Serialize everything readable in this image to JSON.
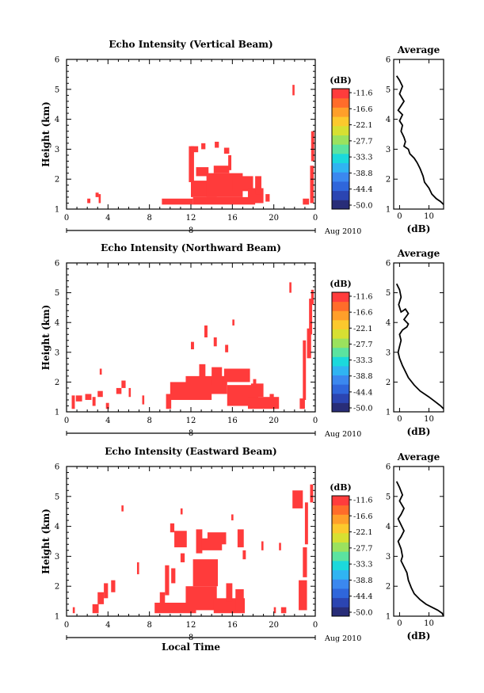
{
  "chart_data": [
    {
      "type": "heatmap",
      "title": "Echo Intensity (Vertical Beam)",
      "ylabel": "Height (km)",
      "xlim": [
        0,
        24
      ],
      "ylim": [
        1,
        6
      ],
      "x_ticks": [
        "0",
        "4",
        "8",
        "12",
        "16",
        "20",
        "0"
      ],
      "y_ticks": [
        "1",
        "2",
        "3",
        "4",
        "5",
        "6"
      ],
      "day_label": "8",
      "month_label": "Aug 2010",
      "echo_cells": [
        [
          2,
          1.2,
          0.3,
          0.15
        ],
        [
          2.8,
          1.4,
          0.3,
          0.15
        ],
        [
          3.1,
          1.2,
          0.2,
          0.3
        ],
        [
          9.2,
          1.15,
          3,
          0.2
        ],
        [
          12.2,
          1.15,
          6,
          0.25
        ],
        [
          12,
          1.4,
          2.5,
          0.55
        ],
        [
          11.8,
          1.9,
          0.5,
          1.2
        ],
        [
          12.5,
          2.1,
          1.2,
          0.3
        ],
        [
          13.5,
          1.4,
          3.5,
          0.8
        ],
        [
          14.2,
          2.2,
          1.5,
          0.25
        ],
        [
          16,
          1.6,
          2,
          0.5
        ],
        [
          17.5,
          1.2,
          1.5,
          0.5
        ],
        [
          18.2,
          1.5,
          0.6,
          0.6
        ],
        [
          12,
          2.9,
          0.7,
          0.2
        ],
        [
          13,
          3.0,
          0.4,
          0.2
        ],
        [
          14.3,
          3.05,
          0.4,
          0.2
        ],
        [
          15.2,
          2.85,
          0.5,
          0.2
        ],
        [
          15.6,
          2.3,
          0.3,
          0.5
        ],
        [
          19.2,
          1.25,
          0.4,
          0.25
        ],
        [
          21.8,
          4.8,
          0.2,
          0.35
        ],
        [
          22.8,
          1.15,
          0.6,
          0.2
        ],
        [
          23.5,
          1.2,
          0.35,
          1.25
        ],
        [
          23.6,
          2.6,
          0.3,
          1.0
        ]
      ],
      "colorbar": {
        "unit": "(dB)",
        "labels": [
          "-11.6",
          "-16.6",
          "-22.1",
          "-27.7",
          "-33.3",
          "-38.8",
          "-44.4",
          "-50.0"
        ]
      },
      "average_profile": {
        "title": "Average",
        "xlabel": "(dB)",
        "xlim": [
          -2,
          15
        ],
        "ylim": [
          1,
          6
        ],
        "x_ticks": [
          "0",
          "10"
        ],
        "y_ticks": [
          "1",
          "2",
          "3",
          "4",
          "5",
          "6"
        ],
        "points": [
          [
            -1,
            5.45
          ],
          [
            0,
            5.3
          ],
          [
            1,
            5.1
          ],
          [
            0,
            4.85
          ],
          [
            1.5,
            4.6
          ],
          [
            0.5,
            4.45
          ],
          [
            -0.5,
            4.3
          ],
          [
            1,
            4.15
          ],
          [
            0,
            3.95
          ],
          [
            1,
            3.8
          ],
          [
            0.5,
            3.6
          ],
          [
            1.5,
            3.4
          ],
          [
            2,
            3.25
          ],
          [
            1.5,
            3.1
          ],
          [
            3,
            3.0
          ],
          [
            3.5,
            2.85
          ],
          [
            5,
            2.7
          ],
          [
            6,
            2.55
          ],
          [
            7,
            2.35
          ],
          [
            8,
            2.1
          ],
          [
            8.5,
            1.9
          ],
          [
            10,
            1.7
          ],
          [
            11,
            1.5
          ],
          [
            12.5,
            1.35
          ],
          [
            14,
            1.25
          ],
          [
            15,
            1.15
          ]
        ]
      }
    },
    {
      "type": "heatmap",
      "title": "Echo Intensity (Northward Beam)",
      "ylabel": "Height (km)",
      "xlim": [
        0,
        24
      ],
      "ylim": [
        1,
        6
      ],
      "x_ticks": [
        "0",
        "4",
        "8",
        "12",
        "16",
        "20",
        "0"
      ],
      "y_ticks": [
        "1",
        "2",
        "3",
        "4",
        "5",
        "6"
      ],
      "day_label": "8",
      "month_label": "Aug 2010",
      "echo_cells": [
        [
          0.5,
          1.1,
          0.3,
          0.45
        ],
        [
          0.9,
          1.35,
          0.6,
          0.2
        ],
        [
          1.8,
          1.4,
          0.6,
          0.2
        ],
        [
          2.5,
          1.2,
          0.3,
          0.3
        ],
        [
          3,
          1.5,
          0.5,
          0.2
        ],
        [
          3.2,
          2.25,
          0.2,
          0.2
        ],
        [
          3.8,
          1.1,
          0.3,
          0.2
        ],
        [
          4.8,
          1.6,
          0.5,
          0.2
        ],
        [
          5.3,
          1.8,
          0.4,
          0.25
        ],
        [
          6,
          1.5,
          0.2,
          0.3
        ],
        [
          7.3,
          1.25,
          0.2,
          0.3
        ],
        [
          9.6,
          1.1,
          0.5,
          0.5
        ],
        [
          10,
          1.4,
          4,
          0.6
        ],
        [
          11.5,
          1.6,
          4,
          0.6
        ],
        [
          12.8,
          2.1,
          0.6,
          0.5
        ],
        [
          14,
          1.9,
          1,
          0.6
        ],
        [
          15.5,
          1.2,
          3,
          0.7
        ],
        [
          15.2,
          2.0,
          2.5,
          0.45
        ],
        [
          17.5,
          1.1,
          3,
          0.4
        ],
        [
          17.8,
          1.5,
          1.2,
          0.45
        ],
        [
          12,
          3.1,
          0.3,
          0.25
        ],
        [
          13.3,
          3.5,
          0.3,
          0.4
        ],
        [
          14.2,
          3.2,
          0.3,
          0.3
        ],
        [
          15.3,
          3.0,
          0.3,
          0.25
        ],
        [
          16,
          3.9,
          0.2,
          0.2
        ],
        [
          18,
          1.8,
          0.3,
          0.3
        ],
        [
          19.6,
          1.4,
          0.4,
          0.2
        ],
        [
          21.5,
          5.0,
          0.2,
          0.35
        ],
        [
          22.5,
          1.1,
          0.5,
          0.35
        ],
        [
          22.8,
          1.4,
          0.3,
          2.0
        ],
        [
          23.2,
          2.8,
          0.4,
          1.0
        ],
        [
          23.4,
          3.6,
          0.3,
          1.2
        ],
        [
          23.6,
          4.6,
          0.25,
          0.5
        ]
      ],
      "colorbar": {
        "unit": "(dB)",
        "labels": [
          "-11.6",
          "-16.6",
          "-22.1",
          "-27.7",
          "-33.3",
          "-38.8",
          "-44.4",
          "-50.0"
        ]
      },
      "average_profile": {
        "title": "Average",
        "xlabel": "(dB)",
        "xlim": [
          -2,
          15
        ],
        "ylim": [
          1,
          6
        ],
        "x_ticks": [
          "0",
          "10"
        ],
        "y_ticks": [
          "1",
          "2",
          "3",
          "4",
          "5",
          "6"
        ],
        "points": [
          [
            -1,
            5.3
          ],
          [
            0,
            5.1
          ],
          [
            0.5,
            4.85
          ],
          [
            -0.3,
            4.6
          ],
          [
            0.5,
            4.35
          ],
          [
            2,
            4.45
          ],
          [
            3,
            4.3
          ],
          [
            1.5,
            4.1
          ],
          [
            3,
            3.95
          ],
          [
            2.5,
            3.85
          ],
          [
            1,
            3.75
          ],
          [
            0,
            3.6
          ],
          [
            0.5,
            3.4
          ],
          [
            0,
            3.2
          ],
          [
            -0.5,
            3.0
          ],
          [
            0,
            2.8
          ],
          [
            1,
            2.55
          ],
          [
            2,
            2.35
          ],
          [
            3,
            2.15
          ],
          [
            5,
            1.9
          ],
          [
            7,
            1.7
          ],
          [
            10,
            1.5
          ],
          [
            12,
            1.35
          ],
          [
            14,
            1.2
          ],
          [
            15,
            1.1
          ]
        ]
      }
    },
    {
      "type": "heatmap",
      "title": "Echo Intensity (Eastward Beam)",
      "ylabel": "Height (km)",
      "xlabel": "Local Time",
      "xlim": [
        0,
        24
      ],
      "ylim": [
        1,
        6
      ],
      "x_ticks": [
        "0",
        "4",
        "8",
        "12",
        "16",
        "20",
        "0"
      ],
      "y_ticks": [
        "1",
        "2",
        "3",
        "4",
        "5",
        "6"
      ],
      "day_label": "8",
      "month_label": "Aug 2010",
      "echo_cells": [
        [
          0.6,
          1.1,
          0.2,
          0.2
        ],
        [
          2.5,
          1.1,
          0.6,
          0.3
        ],
        [
          3,
          1.4,
          0.6,
          0.4
        ],
        [
          3.6,
          1.6,
          0.4,
          0.5
        ],
        [
          4.3,
          1.8,
          0.4,
          0.4
        ],
        [
          5.3,
          4.5,
          0.2,
          0.2
        ],
        [
          6.8,
          2.4,
          0.2,
          0.4
        ],
        [
          8.5,
          1.1,
          4,
          0.35
        ],
        [
          9,
          1.4,
          0.5,
          0.4
        ],
        [
          9.5,
          1.7,
          0.4,
          1.0
        ],
        [
          10.1,
          2.1,
          0.4,
          0.5
        ],
        [
          10.4,
          3.3,
          1.2,
          0.55
        ],
        [
          10,
          3.8,
          0.4,
          0.3
        ],
        [
          11,
          2.8,
          0.4,
          0.3
        ],
        [
          11.5,
          1.2,
          3,
          0.8
        ],
        [
          12.2,
          2.0,
          2.4,
          0.9
        ],
        [
          12.5,
          3.1,
          0.6,
          0.8
        ],
        [
          13,
          3.2,
          2,
          0.4
        ],
        [
          13.6,
          3.4,
          1.8,
          0.4
        ],
        [
          14.2,
          1.1,
          3,
          0.5
        ],
        [
          15.4,
          1.5,
          0.6,
          0.6
        ],
        [
          16.3,
          1.2,
          0.8,
          0.7
        ],
        [
          16.5,
          3.3,
          0.6,
          0.6
        ],
        [
          17,
          2.9,
          0.3,
          0.3
        ],
        [
          18.8,
          3.2,
          0.2,
          0.3
        ],
        [
          20.5,
          3.2,
          0.2,
          0.25
        ],
        [
          20.7,
          1.1,
          0.5,
          0.2
        ],
        [
          20,
          1.1,
          0.2,
          0.2
        ],
        [
          21.8,
          4.6,
          1,
          0.6
        ],
        [
          22.4,
          1.2,
          0.8,
          1.0
        ],
        [
          22.8,
          2.3,
          0.4,
          1.0
        ],
        [
          23,
          3.4,
          0.3,
          1.4
        ],
        [
          23.5,
          4.8,
          0.3,
          0.6
        ],
        [
          11,
          4.4,
          0.2,
          0.2
        ],
        [
          15.9,
          4.2,
          0.2,
          0.2
        ]
      ],
      "colorbar": {
        "unit": "(dB)",
        "labels": [
          "-11.6",
          "-16.6",
          "-22.1",
          "-27.7",
          "-33.3",
          "-38.8",
          "-44.4",
          "-50.0"
        ]
      },
      "average_profile": {
        "title": "Average",
        "xlabel": "(dB)",
        "xlim": [
          -2,
          15
        ],
        "ylim": [
          1,
          6
        ],
        "x_ticks": [
          "0",
          "10"
        ],
        "y_ticks": [
          "1",
          "2",
          "3",
          "4",
          "5",
          "6"
        ],
        "points": [
          [
            -1,
            5.5
          ],
          [
            0,
            5.3
          ],
          [
            1,
            5.05
          ],
          [
            0,
            4.85
          ],
          [
            1.5,
            4.6
          ],
          [
            0.5,
            4.4
          ],
          [
            -0.5,
            4.25
          ],
          [
            0.5,
            4.05
          ],
          [
            1.5,
            3.85
          ],
          [
            0.5,
            3.65
          ],
          [
            -0.5,
            3.5
          ],
          [
            0.5,
            3.25
          ],
          [
            1,
            3.0
          ],
          [
            0.5,
            2.85
          ],
          [
            1.5,
            2.65
          ],
          [
            2.5,
            2.45
          ],
          [
            3,
            2.2
          ],
          [
            4,
            1.95
          ],
          [
            5,
            1.75
          ],
          [
            7,
            1.55
          ],
          [
            9,
            1.4
          ],
          [
            11,
            1.3
          ],
          [
            13,
            1.2
          ],
          [
            14.5,
            1.1
          ],
          [
            15,
            1.0
          ]
        ]
      }
    }
  ],
  "colorbar_colors": [
    "#282d78",
    "#2b45b2",
    "#2f66db",
    "#3b88ef",
    "#30b4f2",
    "#1bd9dc",
    "#5be3a0",
    "#9be25e",
    "#d7e032",
    "#fcc92d",
    "#ff9f2a",
    "#ff6c2a",
    "#ff3c3c"
  ],
  "echo_color": "#ff3b3b"
}
